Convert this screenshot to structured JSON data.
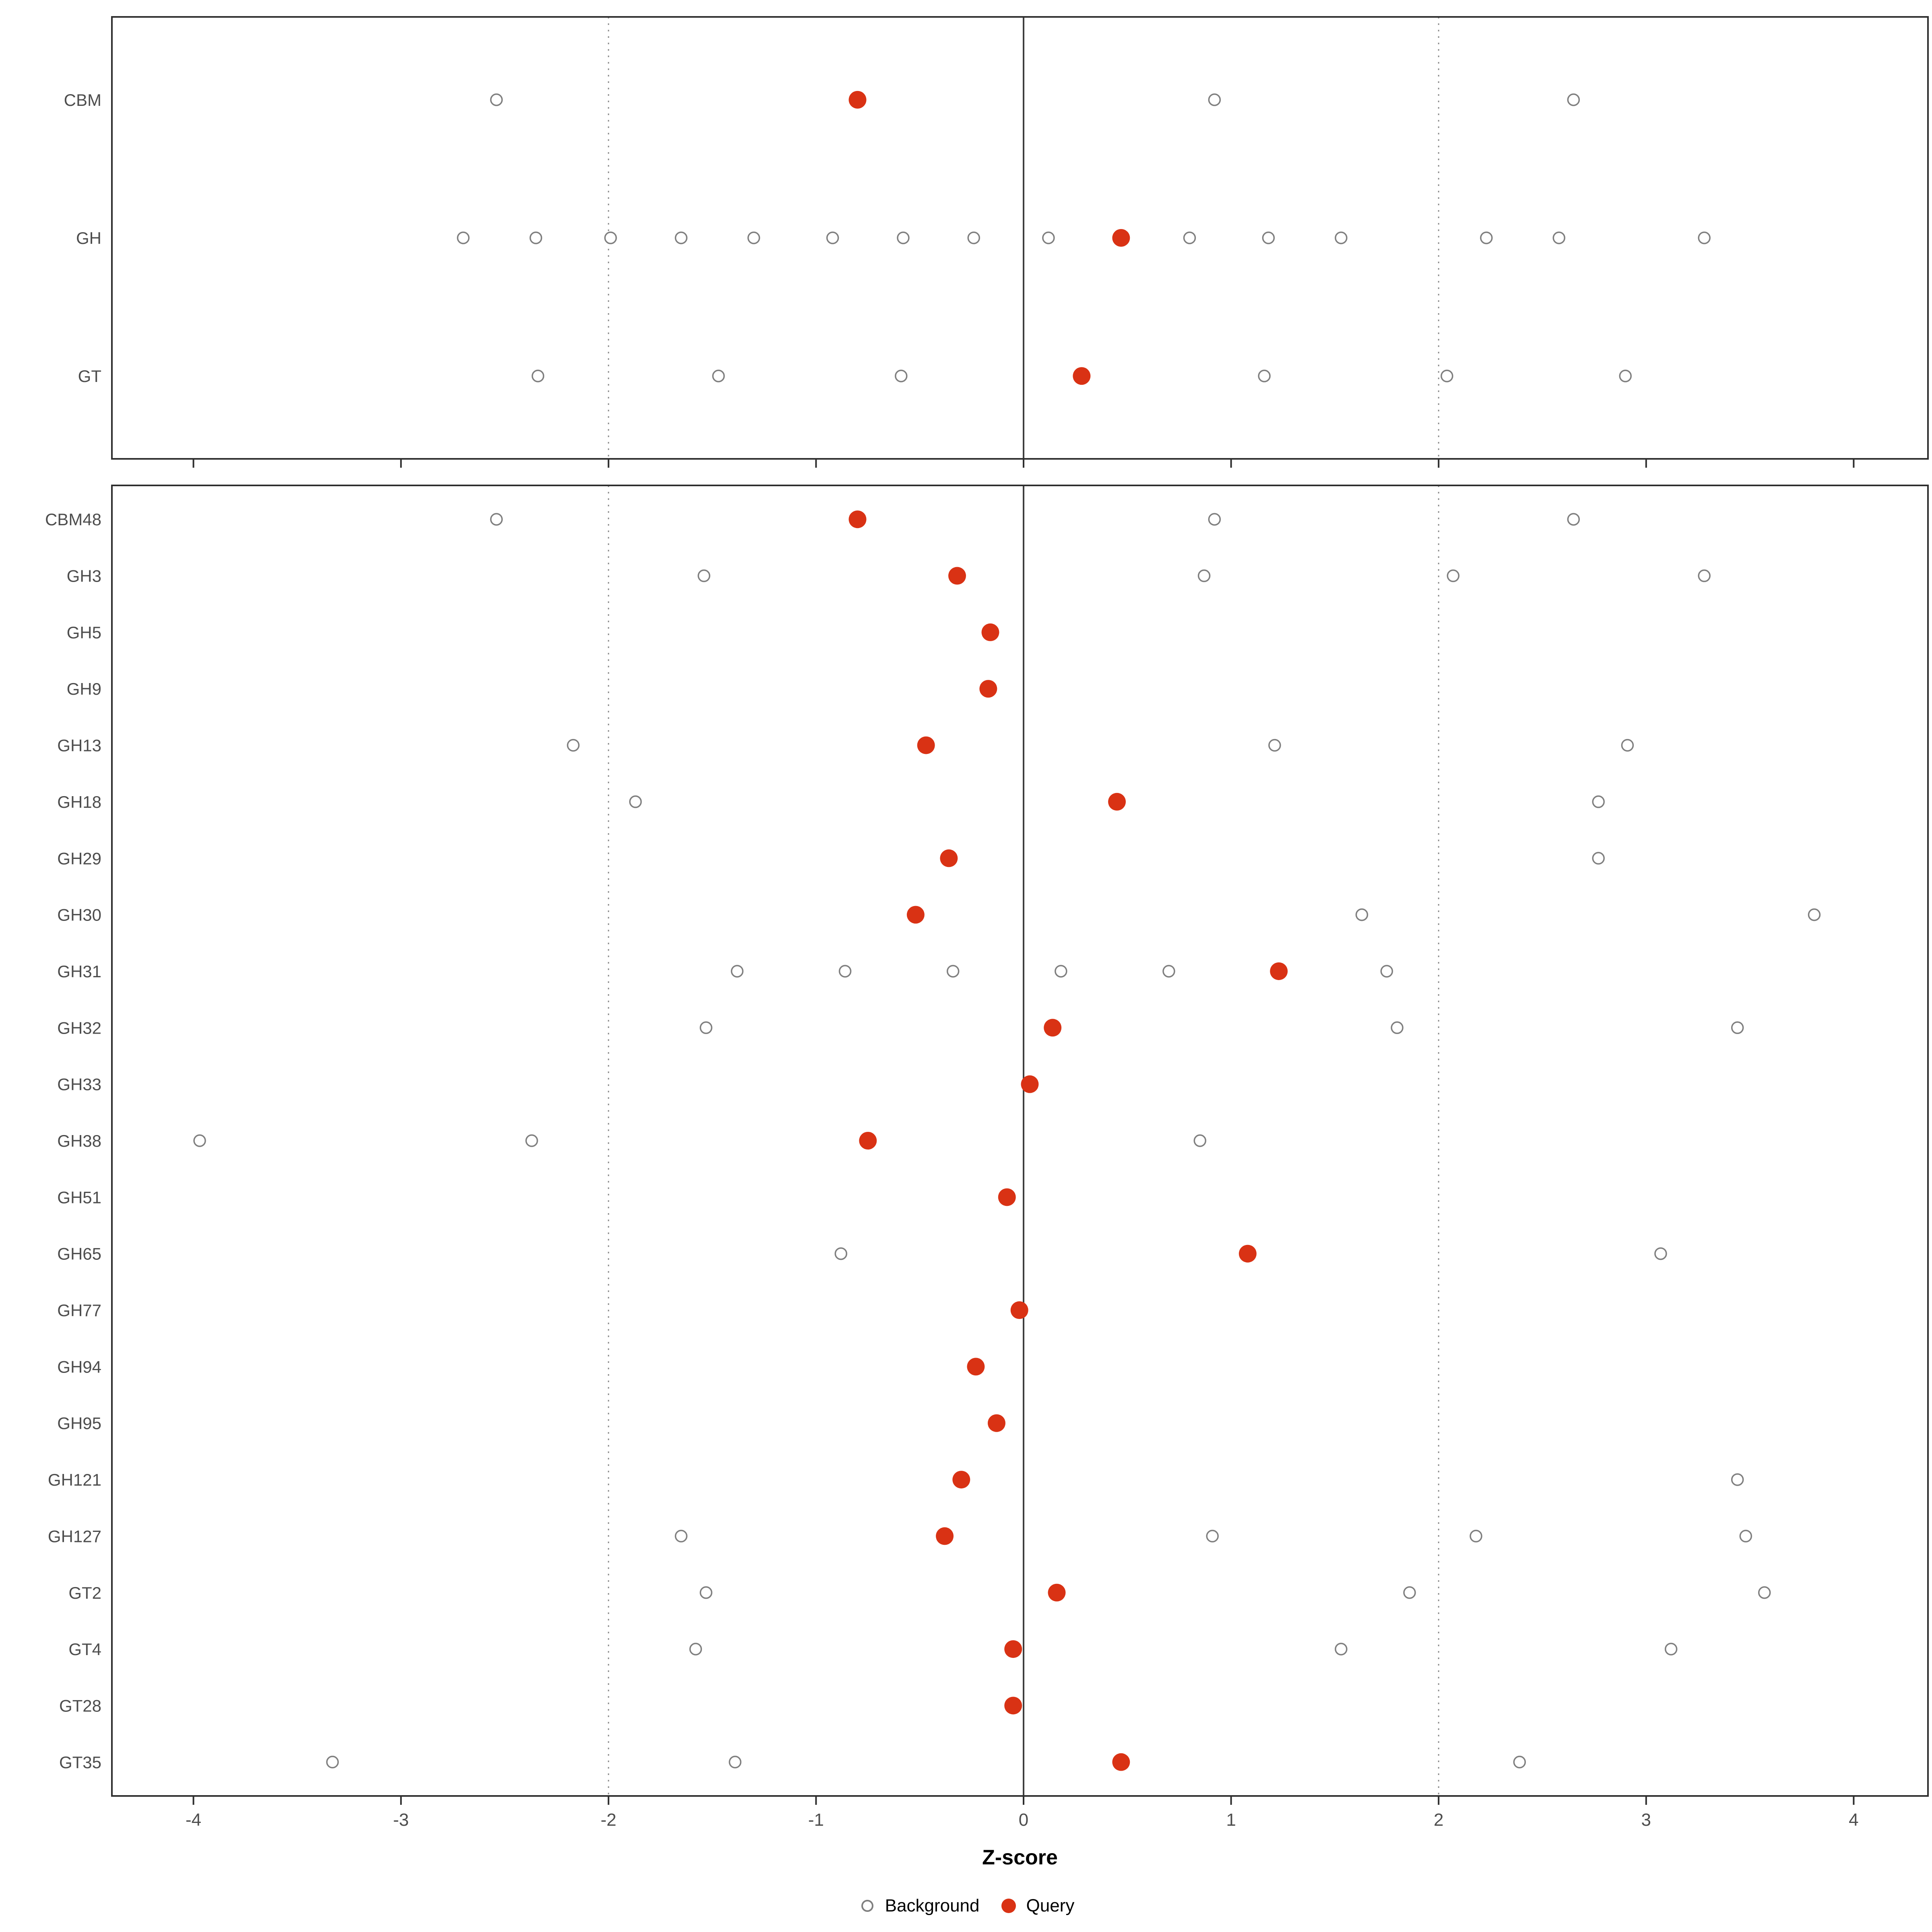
{
  "chart_data": {
    "type": "scatter",
    "title": "",
    "xlabel": "Z-score",
    "ylabel": "",
    "xlim": [
      -4.4,
      4.4
    ],
    "x_ticks": [
      -4,
      -3,
      -2,
      -1,
      0,
      1,
      2,
      3,
      4
    ],
    "gridlines_dotted_at": [
      -2,
      2
    ],
    "zero_line_at": 0,
    "grid": "vertical-dotted-only",
    "legend_position": "bottom-center",
    "legend": [
      {
        "label": "Background",
        "marker": "open-circle",
        "color": "#7f7f7f"
      },
      {
        "label": "Query",
        "marker": "filled-circle",
        "color": "#d93214"
      }
    ],
    "panels": [
      {
        "name": "category-summary",
        "rows": [
          {
            "label": "CBM",
            "background": [
              -2.54,
              0.92,
              2.65
            ],
            "query": -0.8
          },
          {
            "label": "GH",
            "background": [
              -2.7,
              -2.35,
              -1.99,
              -1.65,
              -1.3,
              -0.92,
              -0.58,
              -0.24,
              0.12,
              0.8,
              1.18,
              1.53,
              2.23,
              2.58,
              3.28
            ],
            "query": 0.47
          },
          {
            "label": "GT",
            "background": [
              -2.34,
              -1.47,
              -0.59,
              1.16,
              2.04,
              2.9
            ],
            "query": 0.28
          }
        ]
      },
      {
        "name": "family-detail",
        "rows": [
          {
            "label": "CBM48",
            "background": [
              -2.54,
              0.92,
              2.65
            ],
            "query": -0.8
          },
          {
            "label": "GH3",
            "background": [
              -1.54,
              0.87,
              2.07,
              3.28
            ],
            "query": -0.32
          },
          {
            "label": "GH5",
            "background": [],
            "query": -0.16
          },
          {
            "label": "GH9",
            "background": [],
            "query": -0.17
          },
          {
            "label": "GH13",
            "background": [
              -2.17,
              1.21,
              2.91
            ],
            "query": -0.47
          },
          {
            "label": "GH18",
            "background": [
              -1.87,
              2.77
            ],
            "query": 0.45
          },
          {
            "label": "GH29",
            "background": [
              2.77
            ],
            "query": -0.36
          },
          {
            "label": "GH30",
            "background": [
              1.63,
              3.81
            ],
            "query": -0.52
          },
          {
            "label": "GH31",
            "background": [
              -1.38,
              -0.86,
              -0.34,
              0.18,
              0.7,
              1.75
            ],
            "query": 1.23
          },
          {
            "label": "GH32",
            "background": [
              -1.53,
              1.8,
              3.44
            ],
            "query": 0.14
          },
          {
            "label": "GH33",
            "background": [],
            "query": 0.03
          },
          {
            "label": "GH38",
            "background": [
              -3.97,
              -2.37,
              0.85
            ],
            "query": -0.75
          },
          {
            "label": "GH51",
            "background": [],
            "query": -0.08
          },
          {
            "label": "GH65",
            "background": [
              -0.88,
              3.07
            ],
            "query": 1.08
          },
          {
            "label": "GH77",
            "background": [],
            "query": -0.02
          },
          {
            "label": "GH94",
            "background": [],
            "query": -0.23
          },
          {
            "label": "GH95",
            "background": [],
            "query": -0.13
          },
          {
            "label": "GH121",
            "background": [
              3.44
            ],
            "query": -0.3
          },
          {
            "label": "GH127",
            "background": [
              -1.65,
              0.91,
              2.18,
              3.48
            ],
            "query": -0.38
          },
          {
            "label": "GT2",
            "background": [
              -1.53,
              1.86,
              3.57
            ],
            "query": 0.16
          },
          {
            "label": "GT4",
            "background": [
              -1.58,
              1.53,
              3.12
            ],
            "query": -0.05
          },
          {
            "label": "GT28",
            "background": [],
            "query": -0.05
          },
          {
            "label": "GT35",
            "background": [
              -3.33,
              -1.39,
              2.39
            ],
            "query": 0.47
          }
        ]
      }
    ]
  },
  "colors": {
    "query": "#d93214",
    "background_stroke": "#7f7f7f",
    "grid_dotted": "#8c8c8c",
    "zero_line": "#3f3f3f",
    "panel_border": "#2e2e2e",
    "axis_text": "#4d4d4d"
  }
}
